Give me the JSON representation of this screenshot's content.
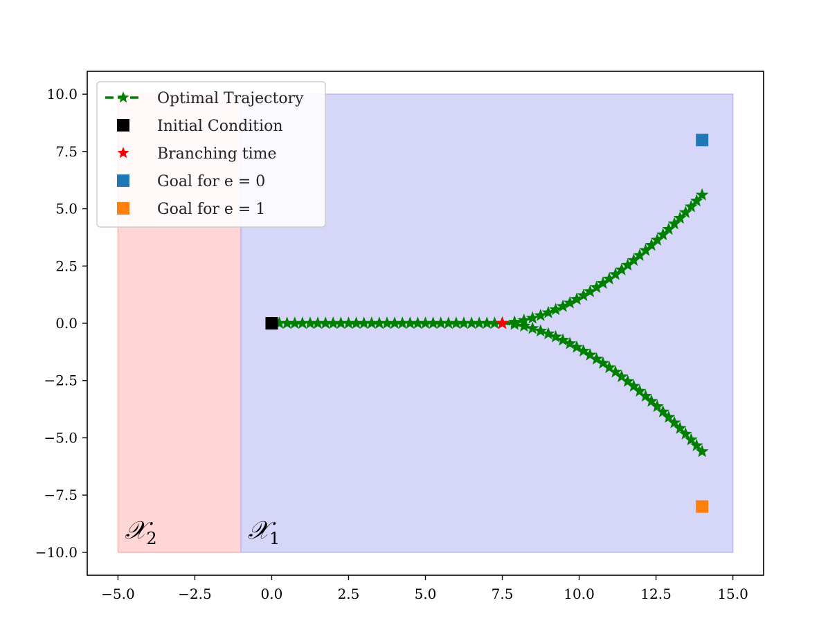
{
  "chart_data": {
    "type": "scatter",
    "xlim": [
      -6,
      16
    ],
    "ylim": [
      -11,
      11
    ],
    "x_ticks": [
      -5.0,
      -2.5,
      0.0,
      2.5,
      5.0,
      7.5,
      10.0,
      12.5,
      15.0
    ],
    "x_tick_labels": [
      "−5.0",
      "−2.5",
      "0.0",
      "2.5",
      "5.0",
      "7.5",
      "10.0",
      "12.5",
      "15.0"
    ],
    "y_ticks": [
      10.0,
      7.5,
      5.0,
      2.5,
      0.0,
      -2.5,
      -5.0,
      -7.5,
      -10.0
    ],
    "y_tick_labels": [
      "10.0",
      "7.5",
      "5.0",
      "2.5",
      "0.0",
      "−2.5",
      "−5.0",
      "−7.5",
      "−10.0"
    ],
    "grid": false,
    "legend_position": "top-left",
    "regions": [
      {
        "label": "𝒳",
        "subscript": "2",
        "x_range": [
          -5,
          -1
        ],
        "y_range": [
          -10,
          10
        ],
        "color": "#ffd6d6"
      },
      {
        "label": "𝒳",
        "subscript": "1",
        "x_range": [
          -1,
          15
        ],
        "y_range": [
          -10,
          10
        ],
        "color": "#d6d6f8"
      }
    ],
    "series": [
      {
        "name": "Optimal Trajectory",
        "marker": "star",
        "linestyle": "dashed",
        "color": "#008000",
        "branches": [
          {
            "x": [
              0.0,
              7.5
            ],
            "y": [
              0.0,
              0.0
            ],
            "n": 30
          },
          {
            "x_start": 7.5,
            "x_end": 14.0,
            "y_end": 5.6,
            "power": 1.7,
            "n": 30
          },
          {
            "x_start": 7.5,
            "x_end": 14.0,
            "y_end": -5.6,
            "power": 1.7,
            "n": 30
          }
        ]
      },
      {
        "name": "Initial Condition",
        "marker": "square",
        "color": "#000000",
        "x": [
          0.0
        ],
        "y": [
          0.0
        ]
      },
      {
        "name": "Branching time",
        "marker": "star",
        "color": "#ff0000",
        "x": [
          7.5
        ],
        "y": [
          0.0
        ]
      },
      {
        "name": "Goal for e = 0",
        "marker": "square",
        "color": "#1f77b4",
        "x": [
          14.0
        ],
        "y": [
          8.0
        ]
      },
      {
        "name": "Goal for e = 1",
        "marker": "square",
        "color": "#ff7f0e",
        "x": [
          14.0
        ],
        "y": [
          -8.0
        ]
      }
    ]
  },
  "legend": [
    {
      "label": "Optimal Trajectory",
      "color": "#008000",
      "marker": "star-line"
    },
    {
      "label": "Initial Condition",
      "color": "#000000",
      "marker": "square"
    },
    {
      "label": "Branching time",
      "color": "#ff0000",
      "marker": "star"
    },
    {
      "label": "Goal for e = 0",
      "color": "#1f77b4",
      "marker": "square"
    },
    {
      "label": "Goal for e = 1",
      "color": "#ff7f0e",
      "marker": "square"
    }
  ]
}
